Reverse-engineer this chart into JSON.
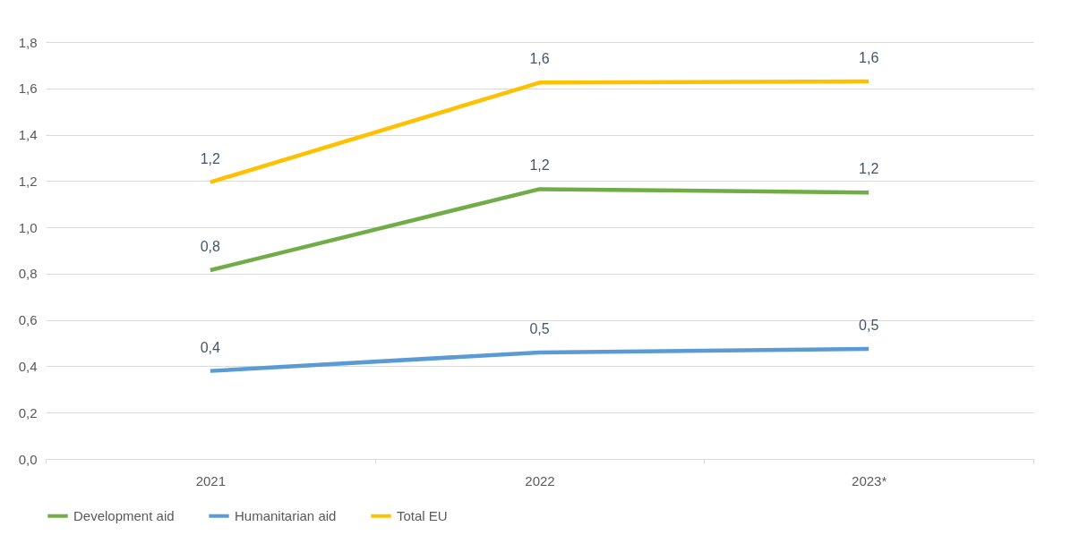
{
  "chart_data": {
    "type": "line",
    "categories": [
      "2021",
      "2022",
      "2023*"
    ],
    "series": [
      {
        "name": "Development aid",
        "color": "#70ad47",
        "values": [
          0.815,
          1.165,
          1.15
        ],
        "value_labels": [
          "0,8",
          "1,2",
          "1,2"
        ]
      },
      {
        "name": "Humanitarian aid",
        "color": "#5b9bd5",
        "values": [
          0.38,
          0.46,
          0.475
        ],
        "value_labels": [
          "0,4",
          "0,5",
          "0,5"
        ]
      },
      {
        "name": "Total EU",
        "color": "#ffc000",
        "values": [
          1.195,
          1.625,
          1.63
        ],
        "value_labels": [
          "1,2",
          "1,6",
          "1,6"
        ]
      }
    ],
    "ylim": [
      0,
      1.8
    ],
    "yticks": [
      {
        "value": 0,
        "label": "0,0"
      },
      {
        "value": 0.2,
        "label": "0,2"
      },
      {
        "value": 0.4,
        "label": "0,4"
      },
      {
        "value": 0.6,
        "label": "0,6"
      },
      {
        "value": 0.8,
        "label": "0,8"
      },
      {
        "value": 1.0,
        "label": "1,0"
      },
      {
        "value": 1.2,
        "label": "1,2"
      },
      {
        "value": 1.4,
        "label": "1,4"
      },
      {
        "value": 1.6,
        "label": "1,6"
      },
      {
        "value": 1.8,
        "label": "1,8"
      }
    ],
    "grid": "y",
    "legend": "bottom",
    "line_style": "solid"
  }
}
